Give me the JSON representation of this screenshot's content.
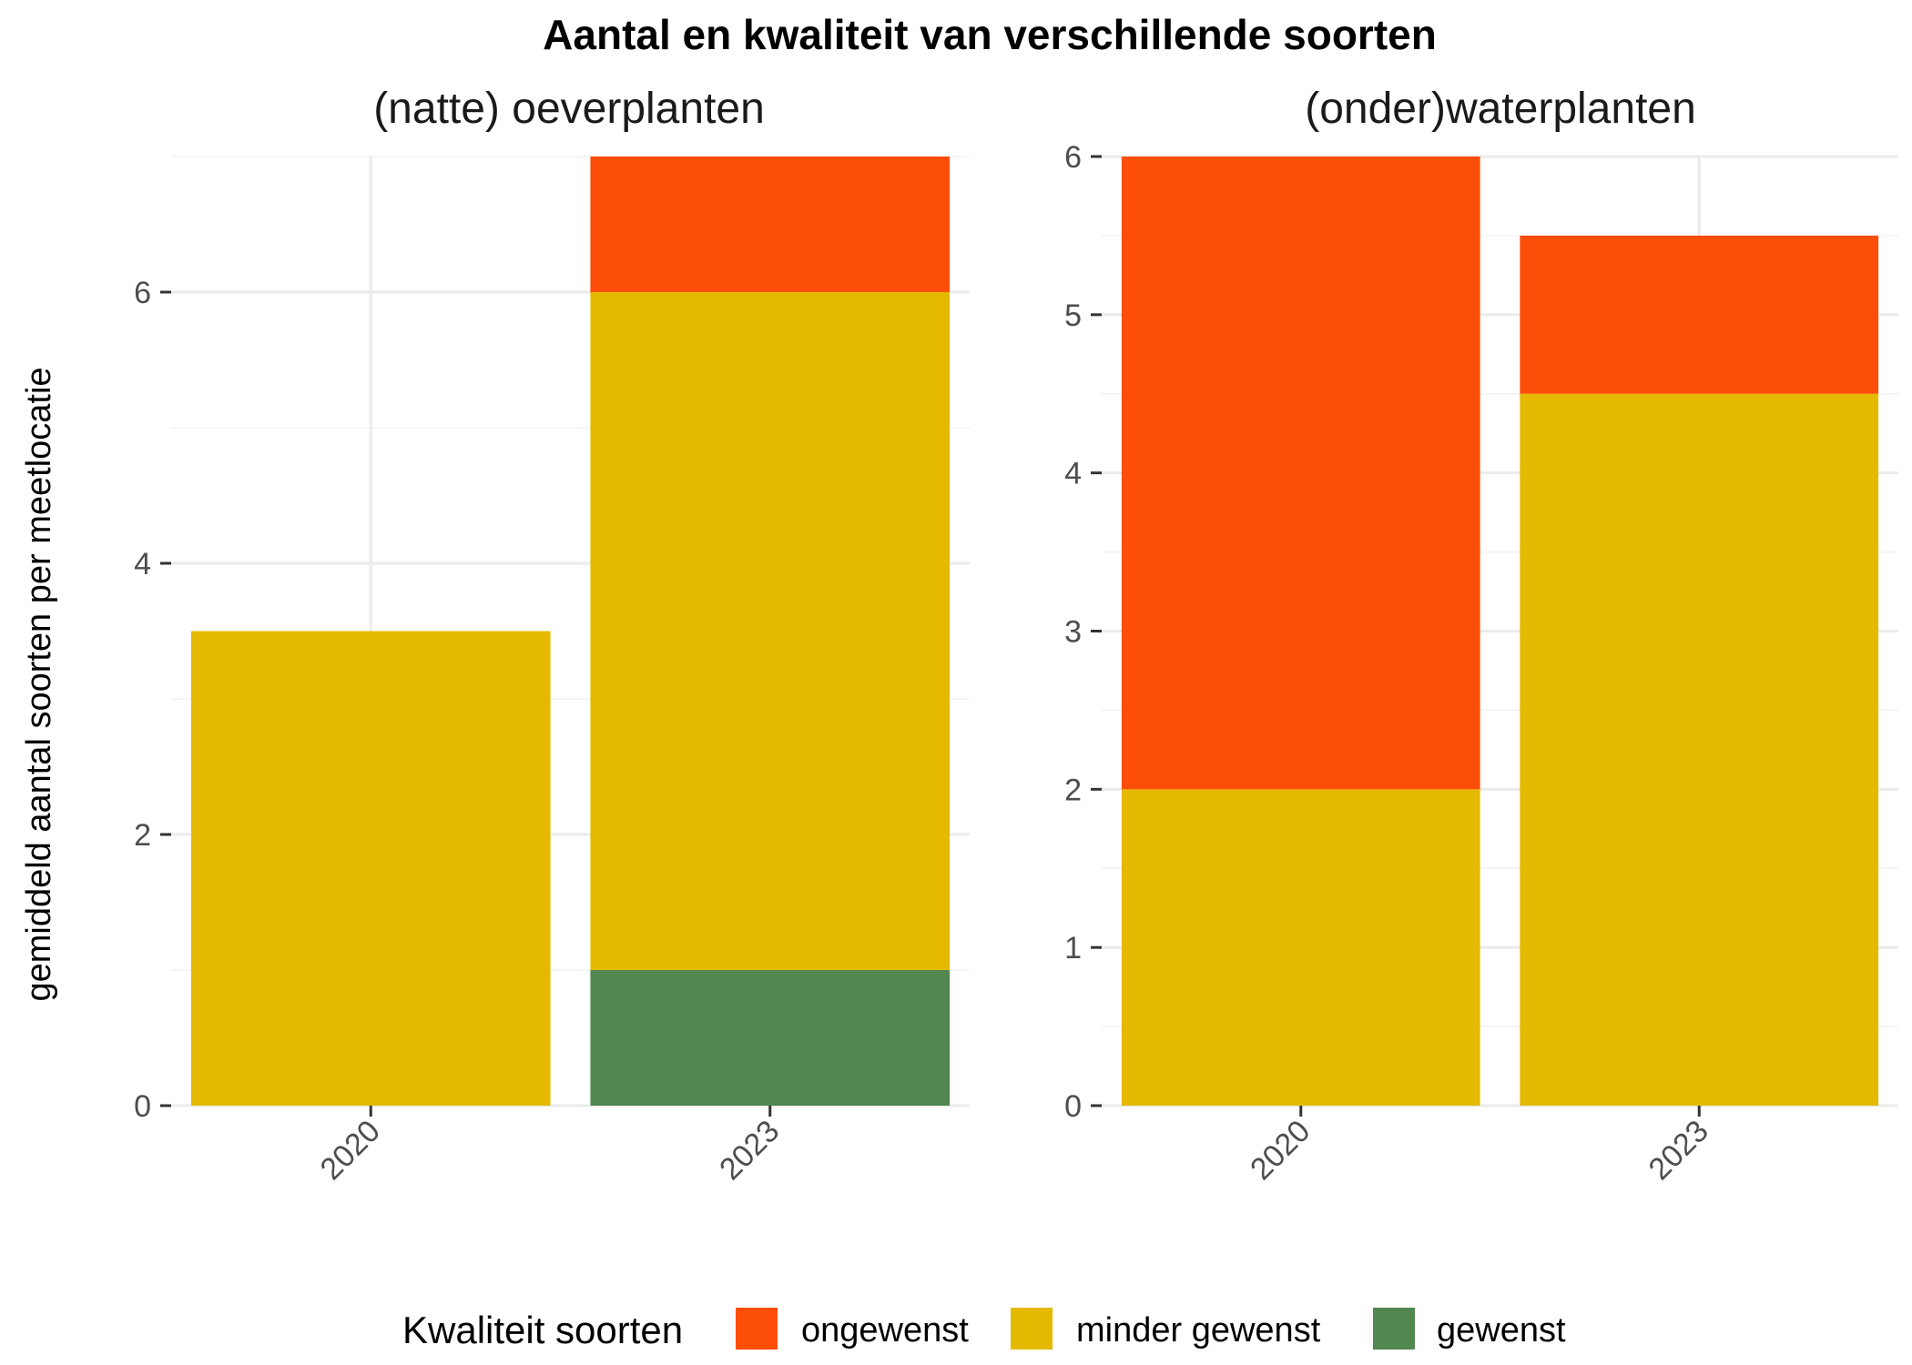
{
  "chart_data": {
    "type": "bar",
    "stacked": true,
    "title": "Aantal en kwaliteit van verschillende soorten",
    "ylabel": "gemiddeld aantal soorten per meetlocatie",
    "legend": {
      "title": "Kwaliteit soorten",
      "position": "bottom",
      "entries": [
        {
          "label": "ongewenst",
          "color": "#fc4e08"
        },
        {
          "label": "minder gewenst",
          "color": "#e5b900"
        },
        {
          "label": "gewenst",
          "color": "#52874f"
        }
      ]
    },
    "grid": true,
    "panels": [
      {
        "title": "(natte) oeverplanten",
        "categories": [
          "2020",
          "2023"
        ],
        "ylim": [
          0,
          7
        ],
        "yticks": [
          0,
          2,
          4,
          6
        ],
        "ytick_labels": [
          "0",
          "2",
          "4",
          "6"
        ],
        "series": [
          {
            "name": "gewenst",
            "values": [
              0,
              1
            ]
          },
          {
            "name": "minder gewenst",
            "values": [
              3.5,
              5
            ]
          },
          {
            "name": "ongewenst",
            "values": [
              0,
              1
            ]
          }
        ]
      },
      {
        "title": "(onder)waterplanten",
        "categories": [
          "2020",
          "2023"
        ],
        "ylim": [
          0,
          6
        ],
        "yticks": [
          0,
          1,
          2,
          3,
          4,
          5,
          6
        ],
        "ytick_labels": [
          "0",
          "1",
          "2",
          "3",
          "4",
          "5",
          "6"
        ],
        "series": [
          {
            "name": "gewenst",
            "values": [
              0,
              0
            ]
          },
          {
            "name": "minder gewenst",
            "values": [
              2,
              4.5
            ]
          },
          {
            "name": "ongewenst",
            "values": [
              4,
              1
            ]
          }
        ]
      }
    ]
  }
}
